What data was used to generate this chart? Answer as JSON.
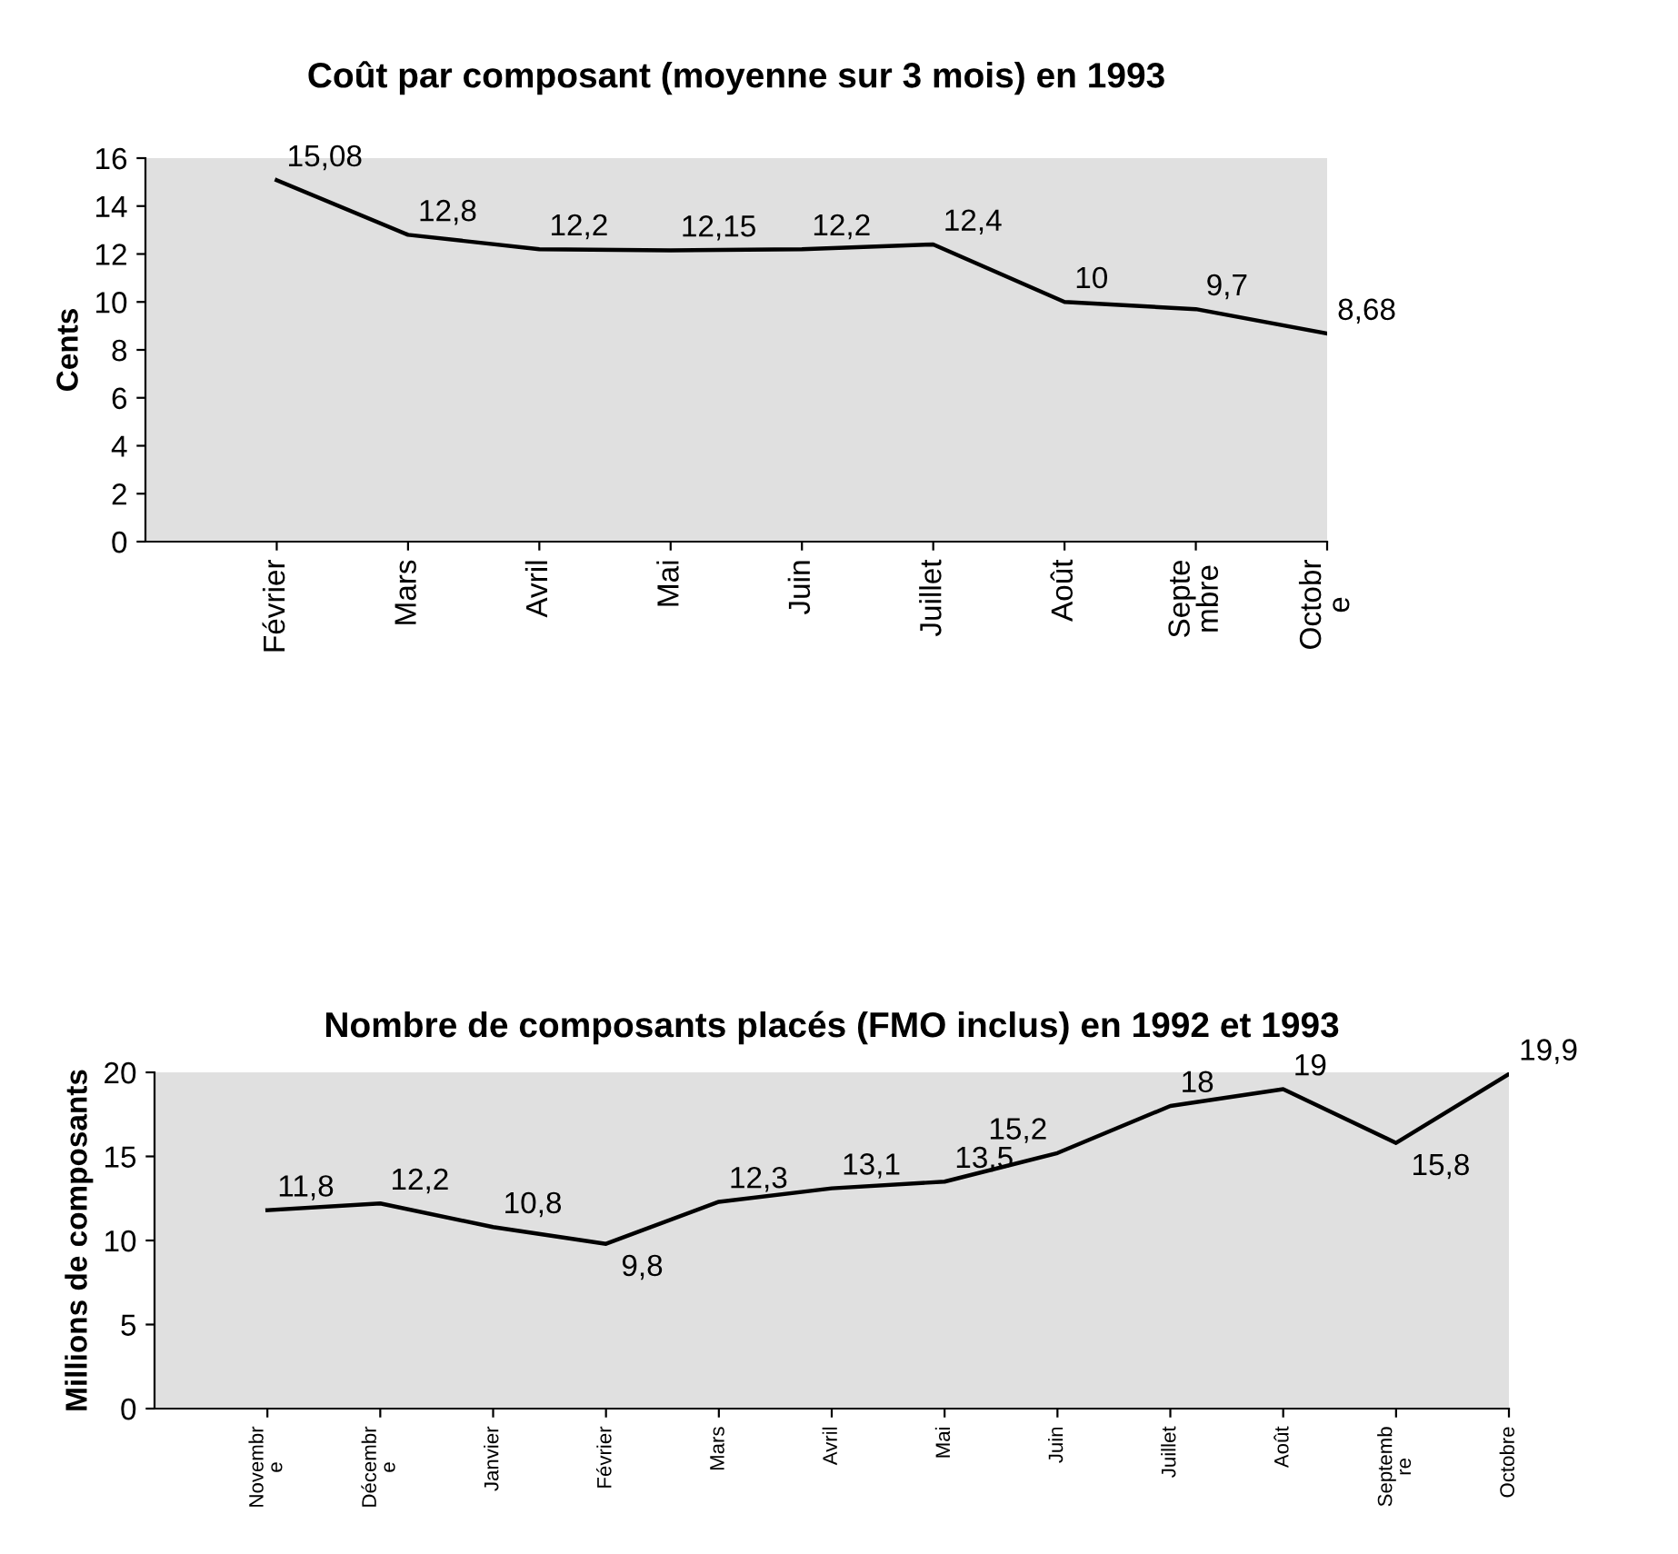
{
  "chart_data": [
    {
      "type": "line",
      "title": "Coût par composant (moyenne sur 3 mois) en 1993",
      "ylabel": "Cents",
      "categories": [
        "Février",
        "Mars",
        "Avril",
        "Mai",
        "Juin",
        "Juillet",
        "Août",
        "Septe\nmbre",
        "Octobr\ne"
      ],
      "series": [
        {
          "color": "#000000",
          "values": [
            15.08,
            12.8,
            12.2,
            12.15,
            12.2,
            12.4,
            10,
            9.7,
            8.68
          ],
          "value_labels": [
            "15,08",
            "12,8",
            "12,2",
            "12,15",
            "12,2",
            "12,4",
            "10",
            "9,7",
            "8,68"
          ]
        }
      ],
      "ylim": [
        0,
        16
      ],
      "yticks": [
        0,
        2,
        4,
        6,
        8,
        10,
        12,
        14,
        16
      ],
      "grid": false,
      "legend": false,
      "marker": "none",
      "line_style": "solid"
    },
    {
      "type": "line",
      "title": "Nombre de composants placés (FMO inclus) en 1992 et 1993",
      "ylabel": "Millions de composants",
      "categories": [
        "Novembr\ne",
        "Décembr\ne",
        "Janvier",
        "Février",
        "Mars",
        "Avril",
        "Mai",
        "Juin",
        "Juillet",
        "Août",
        "Septemb\nre",
        "Octobre"
      ],
      "series": [
        {
          "color": "#000000",
          "values": [
            11.8,
            12.2,
            10.8,
            9.8,
            12.3,
            13.1,
            13.5,
            15.2,
            18,
            19,
            15.8,
            19.9
          ],
          "value_labels": [
            "11,8",
            "12,2",
            "10,8",
            "9,8",
            "12,3",
            "13,1",
            "13,5",
            "15,2",
            "18",
            "19",
            "15,8",
            "19,9"
          ]
        }
      ],
      "ylim": [
        0,
        20
      ],
      "yticks": [
        0,
        5,
        10,
        15,
        20
      ],
      "grid": false,
      "legend": false,
      "marker": "none",
      "line_style": "solid"
    }
  ]
}
